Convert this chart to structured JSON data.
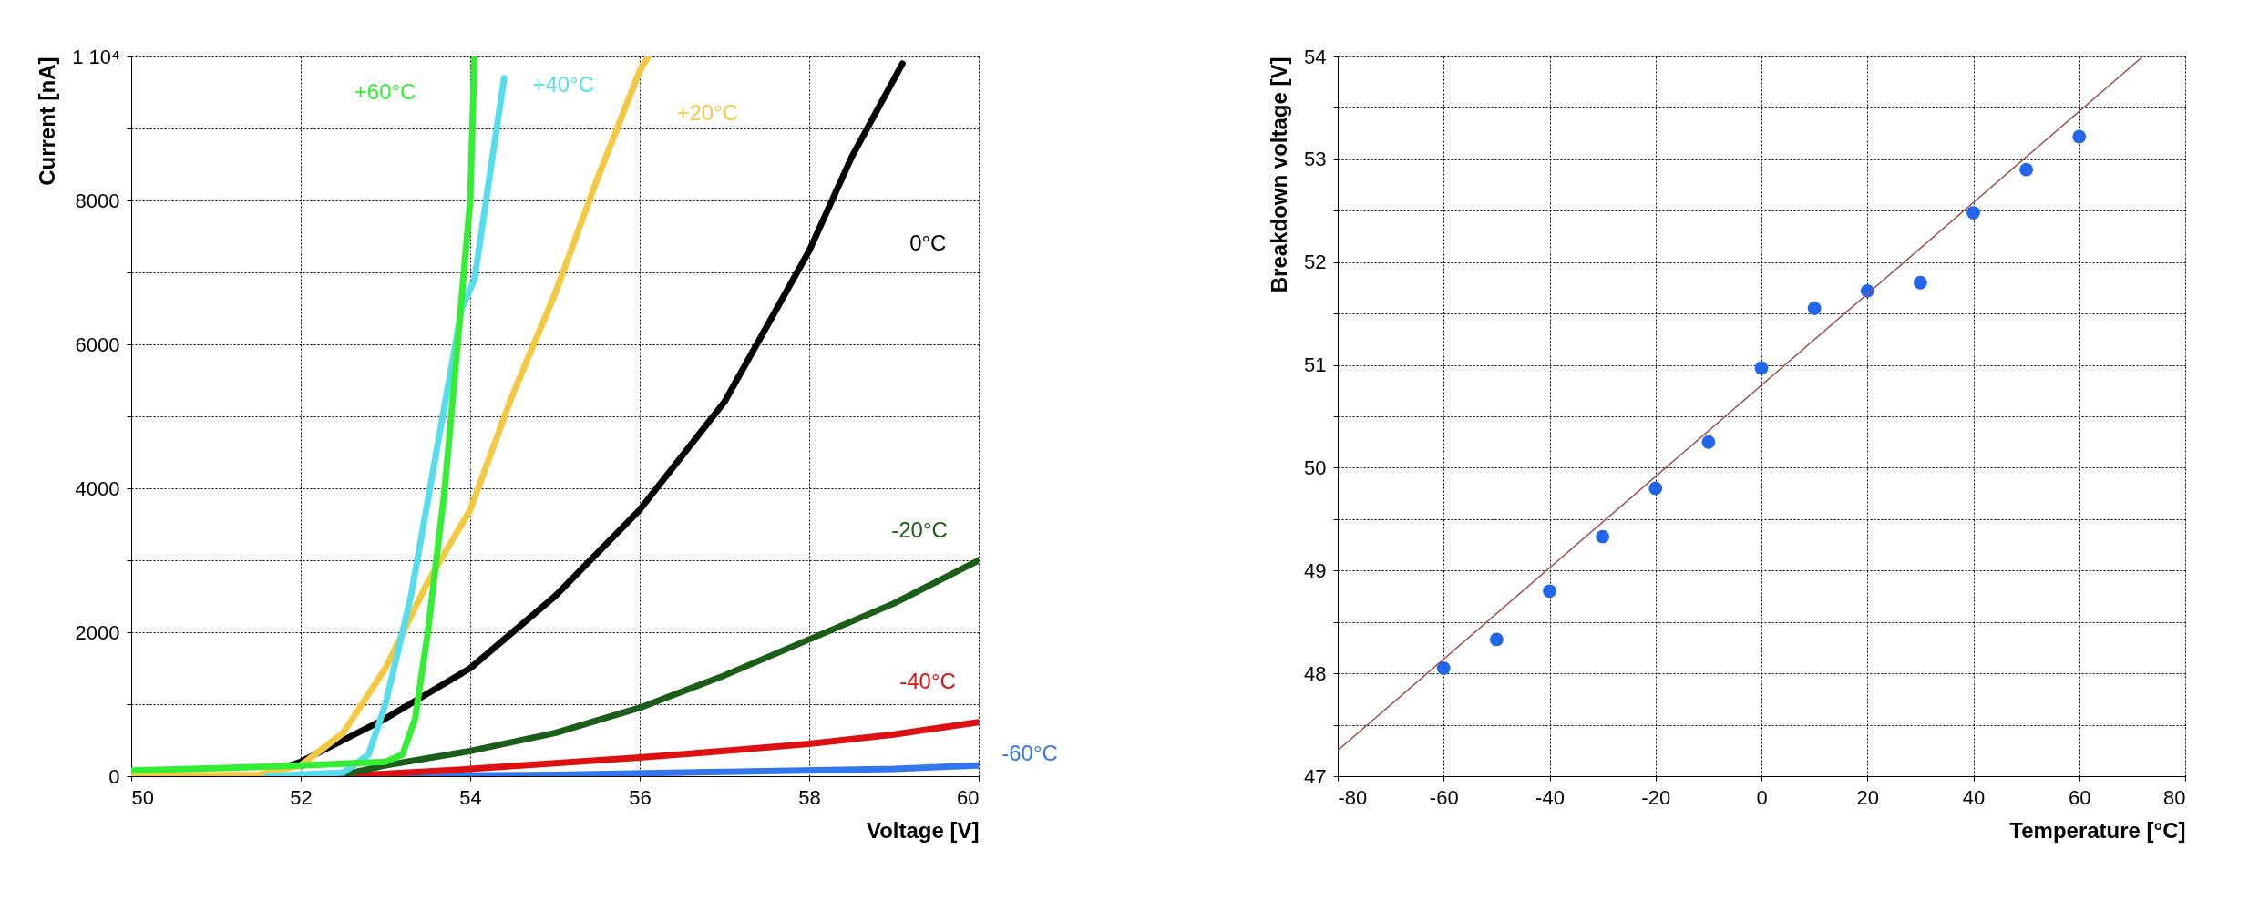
{
  "chart_data": [
    {
      "type": "line",
      "xlabel": "Voltage [V]",
      "ylabel": "Current [nA]",
      "xlim": [
        50,
        60
      ],
      "xticks": [
        50,
        52,
        54,
        56,
        58,
        60
      ],
      "ylim": [
        0,
        10000
      ],
      "yticks": [
        0,
        {
          "value": 1000,
          "label": null
        },
        2000,
        {
          "value": 3000,
          "label": null
        },
        4000,
        {
          "value": 5000,
          "label": null
        },
        6000,
        {
          "value": 7000,
          "label": null
        },
        8000,
        {
          "value": 9000,
          "label": null
        },
        {
          "value": 10000,
          "label": "1 10⁴"
        }
      ],
      "grid": true,
      "legend": false,
      "marker": "none",
      "line_style": "solid",
      "series": [
        {
          "name": "+60°C",
          "color": "#33ee33",
          "x": [
            50,
            51,
            52,
            53,
            53.2,
            53.35,
            53.5,
            53.7,
            53.85,
            54.0,
            54.05
          ],
          "values": [
            80,
            110,
            150,
            200,
            300,
            800,
            2000,
            4000,
            6000,
            8000,
            10000
          ]
        },
        {
          "name": "+40°C",
          "color": "#55ddee",
          "x": [
            51.6,
            52.5,
            52.8,
            53.0,
            53.3,
            53.6,
            53.9,
            54.05,
            54.1,
            54.15,
            54.2,
            54.25,
            54.3,
            54.35,
            54.4
          ],
          "values": [
            0,
            50,
            300,
            1000,
            2500,
            4500,
            6500,
            6900,
            7300,
            7700,
            8100,
            8500,
            8900,
            9300,
            9700
          ]
        },
        {
          "name": "+20°C",
          "color": "#f5c842",
          "x": [
            50,
            51.5,
            52,
            52.5,
            53,
            53.5,
            54,
            54.5,
            55,
            55.5,
            56,
            56.1
          ],
          "values": [
            0,
            20,
            150,
            600,
            1500,
            2700,
            3700,
            5300,
            6700,
            8300,
            9800,
            10000
          ]
        },
        {
          "name": "0°C",
          "color": "#000000",
          "x": [
            51.5,
            52,
            52.5,
            53,
            54,
            55,
            56,
            57,
            58,
            58.5,
            59.1
          ],
          "values": [
            0,
            200,
            500,
            800,
            1500,
            2500,
            3700,
            5200,
            7300,
            8600,
            9900
          ]
        },
        {
          "name": "-20°C",
          "color": "#1a5e1a",
          "x": [
            52.5,
            53,
            54,
            55,
            56,
            57,
            58,
            59,
            60
          ],
          "values": [
            20,
            150,
            350,
            600,
            950,
            1400,
            1900,
            2400,
            3000
          ]
        },
        {
          "name": "-40°C",
          "color": "#dd1111",
          "x": [
            52.5,
            54,
            55,
            56,
            57,
            58,
            59,
            60
          ],
          "values": [
            0,
            100,
            180,
            260,
            350,
            450,
            580,
            750
          ]
        },
        {
          "name": "-60°C",
          "color": "#3377ee",
          "x": [
            51.5,
            53,
            55,
            57,
            59,
            60
          ],
          "values": [
            0,
            0,
            20,
            60,
            100,
            150
          ]
        }
      ]
    },
    {
      "type": "scatter",
      "xlabel": "Temperature [°C]",
      "ylabel": "Breakdown voltage [V]",
      "xlim": [
        -80,
        80
      ],
      "xticks": [
        -80,
        -60,
        -40,
        -20,
        0,
        20,
        40,
        60,
        80
      ],
      "ylim": [
        47,
        54
      ],
      "yticks": [
        47,
        {
          "value": 47.5,
          "label": null
        },
        48,
        {
          "value": 48.5,
          "label": null
        },
        49,
        {
          "value": 49.5,
          "label": null
        },
        50,
        {
          "value": 50.5,
          "label": null
        },
        51,
        {
          "value": 51.5,
          "label": null
        },
        52,
        {
          "value": 52.5,
          "label": null
        },
        53,
        {
          "value": 53.5,
          "label": null
        },
        54
      ],
      "grid": true,
      "legend": false,
      "marker": "circle",
      "series": [
        {
          "type": "scatter",
          "color": "#2266ee",
          "x": [
            -60,
            -50,
            -40,
            -30,
            -20,
            -10,
            0,
            10,
            20,
            30,
            40,
            50,
            60
          ],
          "values": [
            48.05,
            48.33,
            48.8,
            49.33,
            49.8,
            50.25,
            50.97,
            51.55,
            51.72,
            51.8,
            52.48,
            52.9,
            53.22
          ]
        },
        {
          "type": "line",
          "marker": "none",
          "line_style": "solid",
          "color": "#a05050",
          "x": [
            -80,
            72
          ],
          "values": [
            47.25,
            54
          ]
        }
      ]
    }
  ]
}
